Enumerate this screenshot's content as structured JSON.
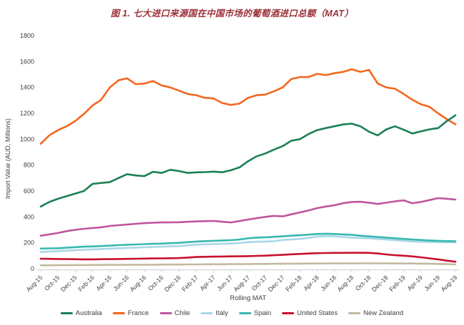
{
  "title": "图 1. 七大进口来源国在中国市场的葡萄酒进口总额（MAT）",
  "colors": {
    "title_text": "#9B3139",
    "axis_text": "#3F3F3F",
    "axis_line": "#D9D9D9",
    "background": "#FFFFFF"
  },
  "chart_data": {
    "type": "line",
    "title": "图 1. 七大进口来源国在中国市场的葡萄酒进口总额（MAT）",
    "xlabel": "Rolling MAT",
    "ylabel": "Import Value (AUD, Millions)",
    "ylim": [
      0,
      1800
    ],
    "y_tick_step": 200,
    "x_tick_every": 2,
    "grid": false,
    "legend_position": "bottom",
    "x": [
      "Aug-15",
      "Sep-15",
      "Oct-15",
      "Nov-15",
      "Dec-15",
      "Jan-16",
      "Feb-16",
      "Mar-16",
      "Apr-16",
      "May-16",
      "Jun-16",
      "Jul-16",
      "Aug-16",
      "Sep-16",
      "Oct-16",
      "Nov-16",
      "Dec-16",
      "Jan-17",
      "Feb-17",
      "Mar-17",
      "Apr-17",
      "May-17",
      "Jun-17",
      "Jul-17",
      "Aug-17",
      "Sep-17",
      "Oct-17",
      "Nov-17",
      "Dec-17",
      "Jan-18",
      "Feb-18",
      "Mar-18",
      "Apr-18",
      "May-18",
      "Jun-18",
      "Jul-18",
      "Aug-18",
      "Sep-18",
      "Oct-18",
      "Nov-18",
      "Dec-18",
      "Jan-19",
      "Feb-19",
      "Mar-19",
      "Apr-19",
      "May-19",
      "Jun-19",
      "Jul-19",
      "Aug-19"
    ],
    "series": [
      {
        "name": "Australia",
        "color": "#1B8054",
        "values": [
          480,
          515,
          540,
          560,
          580,
          600,
          655,
          662,
          668,
          700,
          730,
          720,
          715,
          748,
          740,
          764,
          754,
          740,
          744,
          746,
          750,
          745,
          760,
          782,
          830,
          868,
          890,
          920,
          946,
          988,
          1000,
          1040,
          1070,
          1086,
          1100,
          1114,
          1120,
          1100,
          1058,
          1030,
          1076,
          1100,
          1074,
          1044,
          1060,
          1076,
          1086,
          1140,
          1185
        ]
      },
      {
        "name": "France",
        "color": "#F4671F",
        "values": [
          965,
          1030,
          1070,
          1100,
          1140,
          1195,
          1260,
          1305,
          1400,
          1455,
          1470,
          1425,
          1430,
          1450,
          1415,
          1400,
          1375,
          1350,
          1340,
          1320,
          1315,
          1280,
          1265,
          1275,
          1320,
          1340,
          1345,
          1370,
          1400,
          1465,
          1480,
          1480,
          1505,
          1495,
          1510,
          1520,
          1540,
          1520,
          1535,
          1430,
          1400,
          1390,
          1350,
          1305,
          1270,
          1250,
          1200,
          1155,
          1115
        ]
      },
      {
        "name": "Chile",
        "color": "#C0549F",
        "values": [
          255,
          265,
          276,
          290,
          300,
          308,
          314,
          320,
          330,
          336,
          341,
          347,
          352,
          355,
          357,
          358,
          359,
          362,
          365,
          367,
          369,
          363,
          357,
          368,
          380,
          390,
          400,
          408,
          404,
          420,
          435,
          450,
          468,
          480,
          490,
          506,
          515,
          517,
          510,
          500,
          510,
          520,
          528,
          506,
          515,
          530,
          545,
          540,
          534
        ]
      },
      {
        "name": "Italy",
        "color": "#A8D7E8",
        "values": [
          130,
          133,
          136,
          140,
          143,
          146,
          149,
          152,
          155,
          158,
          161,
          163,
          165,
          168,
          170,
          173,
          175,
          180,
          186,
          188,
          190,
          192,
          195,
          198,
          205,
          208,
          210,
          212,
          222,
          226,
          230,
          238,
          248,
          252,
          250,
          245,
          240,
          238,
          235,
          230,
          225,
          220,
          215,
          210,
          208,
          206,
          205,
          204,
          204
        ]
      },
      {
        "name": "Spain",
        "color": "#38B8B0",
        "values": [
          155,
          157,
          158,
          162,
          166,
          170,
          172,
          175,
          178,
          182,
          185,
          187,
          190,
          192,
          194,
          197,
          200,
          205,
          210,
          213,
          215,
          218,
          220,
          225,
          235,
          240,
          243,
          246,
          250,
          255,
          258,
          263,
          268,
          270,
          268,
          265,
          262,
          255,
          250,
          245,
          240,
          235,
          230,
          225,
          222,
          218,
          215,
          213,
          212
        ]
      },
      {
        "name": "United States",
        "color": "#C8102E",
        "values": [
          77,
          76,
          75,
          74,
          73,
          72,
          72,
          73,
          74,
          75,
          76,
          77,
          78,
          79,
          80,
          81,
          82,
          86,
          90,
          92,
          93,
          94,
          95,
          96,
          97,
          99,
          101,
          104,
          107,
          111,
          114,
          117,
          120,
          121,
          122,
          122,
          123,
          123,
          122,
          118,
          110,
          104,
          100,
          95,
          88,
          80,
          72,
          62,
          54
        ]
      },
      {
        "name": "New Zealand",
        "color": "#C2B9A0",
        "values": [
          26,
          26,
          27,
          27,
          28,
          28,
          29,
          29,
          30,
          30,
          30,
          31,
          31,
          31,
          32,
          32,
          32,
          33,
          33,
          34,
          34,
          34,
          35,
          35,
          36,
          37,
          37,
          38,
          38,
          39,
          39,
          40,
          40,
          40,
          41,
          41,
          41,
          42,
          42,
          42,
          41,
          41,
          40,
          40,
          39,
          38,
          37,
          35,
          33
        ]
      }
    ]
  }
}
